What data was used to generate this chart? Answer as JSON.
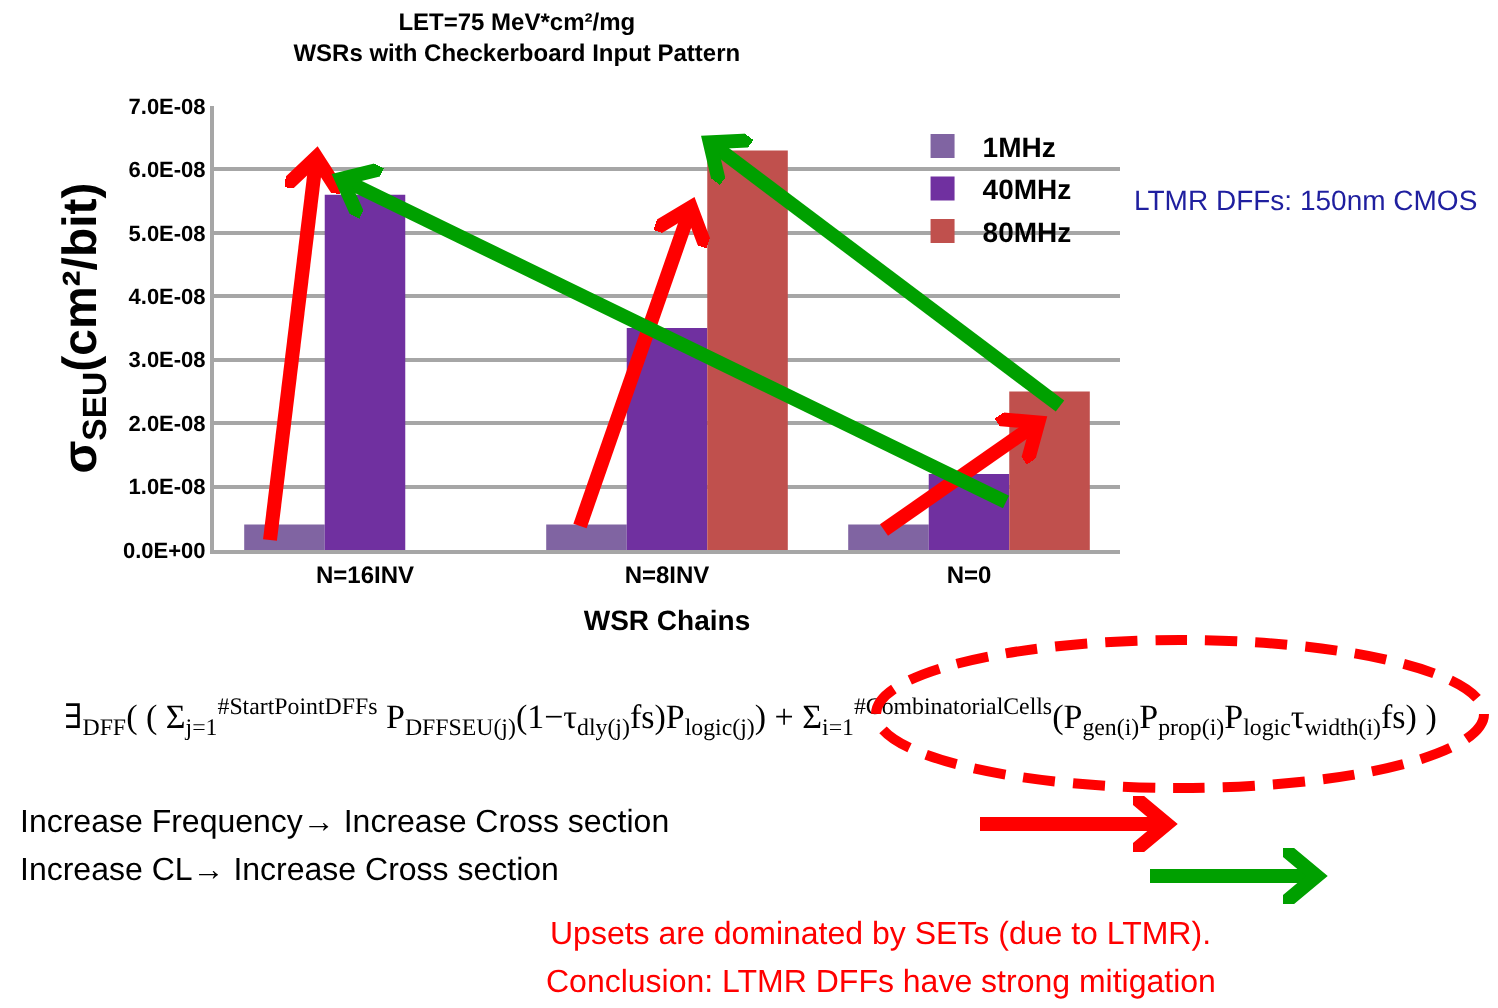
{
  "chart_data": {
    "type": "bar",
    "title": "LET=75 MeV*cm²/mg",
    "subtitle": "WSRs with Checkerboard Input Pattern",
    "xlabel": "WSR Chains",
    "ylabel": "σ$_{SEU}$(cm²/bit)",
    "categories": [
      "N=16INV",
      "N=8INV",
      "N=0"
    ],
    "series": [
      {
        "name": "1MHz",
        "color": "#8064a2",
        "values": [
          4e-09,
          4e-09,
          4e-09
        ]
      },
      {
        "name": "40MHz",
        "color": "#7030a0",
        "values": [
          5.6e-08,
          3.5e-08,
          1.2e-08
        ]
      },
      {
        "name": "80MHz",
        "color": "#c0504d",
        "values": [
          null,
          6.3e-08,
          2.5e-08
        ]
      }
    ],
    "ylim": [
      0,
      7e-08
    ],
    "yticks": [
      {
        "value": 0,
        "label": "0.0E+00"
      },
      {
        "value": 1e-08,
        "label": "1.0E-08"
      },
      {
        "value": 2e-08,
        "label": "2.0E-08"
      },
      {
        "value": 3e-08,
        "label": "3.0E-08"
      },
      {
        "value": 4e-08,
        "label": "4.0E-08"
      },
      {
        "value": 5e-08,
        "label": "5.0E-08"
      },
      {
        "value": 6e-08,
        "label": "6.0E-08"
      },
      {
        "value": 7e-08,
        "label": "7.0E-08"
      }
    ],
    "grid": "y",
    "legend": "top right",
    "annotations": [
      "LTMR DFFs: 150nm CMOS",
      "∃$_{DFF}$( ( Σ$_{j=1}$$^{#StartPointDFFs}$ P$_{DFFSEU(j)}$(1−τ$_{dly(j)}$fs)P$_{logic(j)}$) + Σ$_{i=1}$$^{#CombinatorialCells}$(P$_{gen(i)}$P$_{prop(i)}$P$_{logic}$τ$_{width(i)}$fs) )",
      "Increase Frequency→ Increase Cross section",
      "Increase CL→ Increase Cross section",
      "Upsets are dominated by SETs (due to LTMR).",
      "Conclusion: LTMR DFFs have strong mitigation"
    ]
  }
}
